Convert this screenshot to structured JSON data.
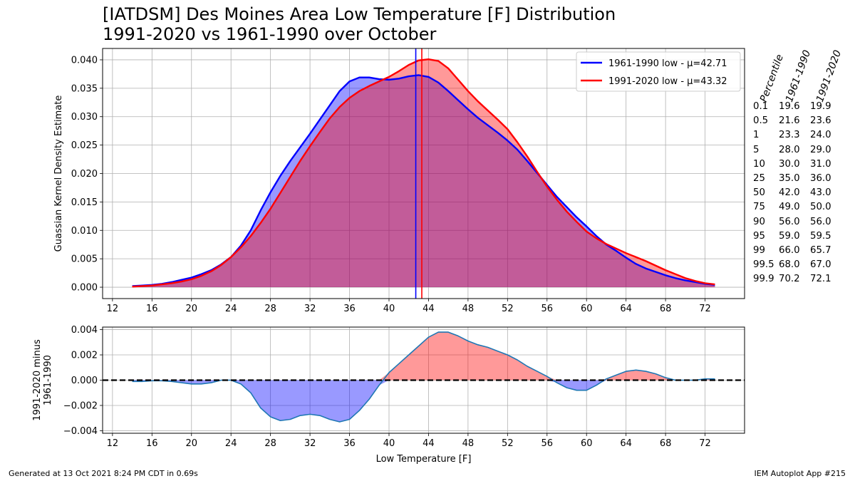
{
  "title_line1": "[IATDSM] Des Moines Area Low Temperature [F] Distribution",
  "title_line2": "1991-2020 vs 1961-1990 over October",
  "footer_left": "Generated at 13 Oct 2021 8:24 PM CDT in 0.69s",
  "footer_right": "IEM Autoplot App #215",
  "percentiles": {
    "headers": [
      "Percentile",
      "1961-1990",
      "1991-2020"
    ],
    "rows": [
      [
        "0.1",
        "19.6",
        "19.9"
      ],
      [
        "0.5",
        "21.6",
        "23.6"
      ],
      [
        "1",
        "23.3",
        "24.0"
      ],
      [
        "5",
        "28.0",
        "29.0"
      ],
      [
        "10",
        "30.0",
        "31.0"
      ],
      [
        "25",
        "35.0",
        "36.0"
      ],
      [
        "50",
        "42.0",
        "43.0"
      ],
      [
        "75",
        "49.0",
        "50.0"
      ],
      [
        "90",
        "56.0",
        "56.0"
      ],
      [
        "95",
        "59.0",
        "59.5"
      ],
      [
        "99",
        "66.0",
        "65.7"
      ],
      [
        "99.5",
        "68.0",
        "67.0"
      ],
      [
        "99.9",
        "70.2",
        "72.1"
      ]
    ]
  },
  "chart_data": [
    {
      "type": "area",
      "ylabel": "Guassian Kernel Density Estimate",
      "xlim": [
        11,
        76
      ],
      "ylim": [
        -0.002,
        0.042
      ],
      "x_ticks": [
        12,
        16,
        20,
        24,
        28,
        32,
        36,
        40,
        44,
        48,
        52,
        56,
        60,
        64,
        68,
        72
      ],
      "y_ticks": [
        "0.000",
        "0.005",
        "0.010",
        "0.015",
        "0.020",
        "0.025",
        "0.030",
        "0.035",
        "0.040"
      ],
      "grid": true,
      "legend_position": "top-right",
      "x": [
        14,
        15,
        16,
        17,
        18,
        19,
        20,
        21,
        22,
        23,
        24,
        25,
        26,
        27,
        28,
        29,
        30,
        31,
        32,
        33,
        34,
        35,
        36,
        37,
        38,
        39,
        40,
        41,
        42,
        43,
        44,
        45,
        46,
        47,
        48,
        49,
        50,
        51,
        52,
        53,
        54,
        55,
        56,
        57,
        58,
        59,
        60,
        61,
        62,
        63,
        64,
        65,
        66,
        67,
        68,
        69,
        70,
        71,
        72,
        73
      ],
      "series": [
        {
          "name": "1961-1990 low - μ=42.71",
          "color": "#0000ff",
          "fill": "#0000ff",
          "mean": 42.71,
          "values": [
            0.0002,
            0.0003,
            0.0004,
            0.0006,
            0.0009,
            0.0013,
            0.0017,
            0.0023,
            0.003,
            0.004,
            0.0053,
            0.0073,
            0.01,
            0.0135,
            0.0167,
            0.0196,
            0.0222,
            0.0246,
            0.027,
            0.0295,
            0.032,
            0.0345,
            0.0362,
            0.0369,
            0.0369,
            0.0366,
            0.0365,
            0.0367,
            0.0371,
            0.0373,
            0.037,
            0.036,
            0.0345,
            0.0329,
            0.0313,
            0.0298,
            0.0285,
            0.0272,
            0.0258,
            0.0242,
            0.0222,
            0.0201,
            0.018,
            0.0159,
            0.0141,
            0.0123,
            0.0107,
            0.009,
            0.0075,
            0.0064,
            0.0052,
            0.0041,
            0.0033,
            0.0027,
            0.0021,
            0.0016,
            0.0012,
            0.0009,
            0.0006,
            0.0004
          ]
        },
        {
          "name": "1991-2020 low - μ=43.32",
          "color": "#ff0000",
          "fill": "#ff0000",
          "mean": 43.32,
          "values": [
            0.0001,
            0.0002,
            0.0003,
            0.0005,
            0.0007,
            0.001,
            0.0014,
            0.002,
            0.0028,
            0.0039,
            0.0053,
            0.007,
            0.009,
            0.0113,
            0.0138,
            0.0166,
            0.0194,
            0.0222,
            0.0248,
            0.0273,
            0.0297,
            0.0317,
            0.0333,
            0.0345,
            0.0354,
            0.0362,
            0.037,
            0.038,
            0.0391,
            0.0399,
            0.0401,
            0.0398,
            0.0385,
            0.0365,
            0.0345,
            0.0327,
            0.0311,
            0.0295,
            0.0278,
            0.0255,
            0.023,
            0.0203,
            0.0177,
            0.0154,
            0.0133,
            0.0115,
            0.0098,
            0.0086,
            0.0076,
            0.0068,
            0.006,
            0.0053,
            0.0046,
            0.0038,
            0.003,
            0.0023,
            0.0016,
            0.0011,
            0.0007,
            0.0005
          ]
        }
      ]
    },
    {
      "type": "area",
      "xlabel": "Low Temperature [F]",
      "ylabel": "1991-2020 minus\n1961-1990",
      "xlim": [
        11,
        76
      ],
      "ylim": [
        -0.0042,
        0.0042
      ],
      "x_ticks": [
        12,
        16,
        20,
        24,
        28,
        32,
        36,
        40,
        44,
        48,
        52,
        56,
        60,
        64,
        68,
        72
      ],
      "y_ticks": [
        "−0.004",
        "−0.002",
        "0.000",
        "0.002",
        "0.004"
      ],
      "grid": true,
      "reference_line_y": 0,
      "line_color": "#1f77b4",
      "positive_fill": "#ff0000",
      "negative_fill": "#0000ff",
      "x": [
        14,
        15,
        16,
        17,
        18,
        19,
        20,
        21,
        22,
        23,
        24,
        25,
        26,
        27,
        28,
        29,
        30,
        31,
        32,
        33,
        34,
        35,
        36,
        37,
        38,
        39,
        40,
        41,
        42,
        43,
        44,
        45,
        46,
        47,
        48,
        49,
        50,
        51,
        52,
        53,
        54,
        55,
        56,
        57,
        58,
        59,
        60,
        61,
        62,
        63,
        64,
        65,
        66,
        67,
        68,
        69,
        70,
        71,
        72,
        73
      ],
      "values": [
        -0.0001,
        -0.0001,
        -5e-05,
        -5e-05,
        -0.0001,
        -0.0002,
        -0.0003,
        -0.0003,
        -0.0002,
        0,
        0,
        -0.0003,
        -0.001,
        -0.0022,
        -0.0029,
        -0.0032,
        -0.0031,
        -0.0028,
        -0.0027,
        -0.0028,
        -0.0031,
        -0.0033,
        -0.0031,
        -0.0024,
        -0.0015,
        -0.0004,
        0.0006,
        0.0013,
        0.002,
        0.0027,
        0.0034,
        0.0038,
        0.0038,
        0.0035,
        0.0031,
        0.0028,
        0.0026,
        0.0023,
        0.002,
        0.0016,
        0.0011,
        0.0007,
        0.0003,
        -0.0002,
        -0.0006,
        -0.0008,
        -0.0008,
        -0.0004,
        0.0001,
        0.0004,
        0.0007,
        0.0008,
        0.0007,
        0.0005,
        0.0002,
        0,
        0,
        0,
        0.0001,
        0.0001
      ]
    }
  ]
}
